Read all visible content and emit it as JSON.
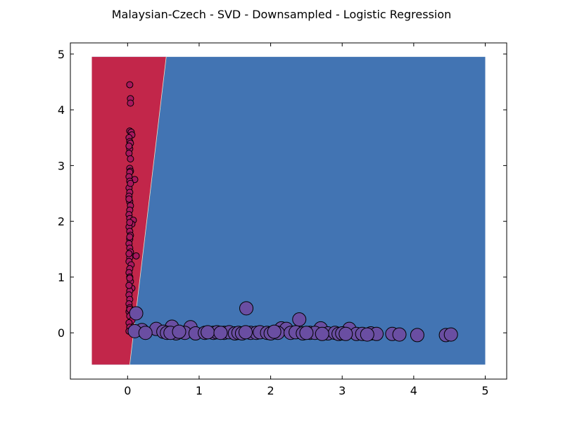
{
  "chart_data": {
    "type": "scatter",
    "title": "Malaysian-Czech - SVD - Downsampled - Logistic Regression",
    "xlabel": "",
    "ylabel": "",
    "xlim": [
      -0.8,
      5.3
    ],
    "ylim": [
      -0.83,
      5.2
    ],
    "xticks": [
      "0",
      "1",
      "2",
      "3",
      "4",
      "5"
    ],
    "yticks": [
      "0",
      "1",
      "2",
      "3",
      "4",
      "5"
    ],
    "decision_regions": {
      "x_range": [
        -0.5,
        5.0
      ],
      "y_range": [
        -0.57,
        4.95
      ],
      "boundary_line": [
        [
          0.03,
          -0.57
        ],
        [
          0.54,
          4.95
        ]
      ],
      "left_color": "#c2264a",
      "right_color": "#4274b3"
    },
    "series": [
      {
        "color": "#a8175e",
        "marker_size": "small",
        "points": [
          [
            0.03,
            4.45
          ],
          [
            0.04,
            4.2
          ],
          [
            0.04,
            4.12
          ],
          [
            0.03,
            3.62
          ],
          [
            0.05,
            3.6
          ],
          [
            0.06,
            3.55
          ],
          [
            0.02,
            3.5
          ],
          [
            0.03,
            3.43
          ],
          [
            0.04,
            3.4
          ],
          [
            0.03,
            3.3
          ],
          [
            0.02,
            3.22
          ],
          [
            0.03,
            2.95
          ],
          [
            0.04,
            2.9
          ],
          [
            0.03,
            2.88
          ],
          [
            0.02,
            2.8
          ],
          [
            0.1,
            2.75
          ],
          [
            0.03,
            2.72
          ],
          [
            0.02,
            2.6
          ],
          [
            0.03,
            2.52
          ],
          [
            0.02,
            2.45
          ],
          [
            0.03,
            2.35
          ],
          [
            0.04,
            2.28
          ],
          [
            0.03,
            2.2
          ],
          [
            0.02,
            2.12
          ],
          [
            0.03,
            2.05
          ],
          [
            0.08,
            2.02
          ],
          [
            0.06,
            1.95
          ],
          [
            0.02,
            1.9
          ],
          [
            0.03,
            1.82
          ],
          [
            0.04,
            1.75
          ],
          [
            0.03,
            1.68
          ],
          [
            0.02,
            1.6
          ],
          [
            0.03,
            1.52
          ],
          [
            0.04,
            1.45
          ],
          [
            0.12,
            1.38
          ],
          [
            0.03,
            1.35
          ],
          [
            0.02,
            1.28
          ],
          [
            0.05,
            1.22
          ],
          [
            0.03,
            1.15
          ],
          [
            0.02,
            1.08
          ],
          [
            0.03,
            1.0
          ],
          [
            0.04,
            0.92
          ],
          [
            0.06,
            0.8
          ],
          [
            0.03,
            0.75
          ],
          [
            0.02,
            0.68
          ],
          [
            0.03,
            0.6
          ],
          [
            0.02,
            0.52
          ],
          [
            0.03,
            0.45
          ],
          [
            0.02,
            0.38
          ],
          [
            0.03,
            0.3
          ],
          [
            0.06,
            0.22
          ],
          [
            0.02,
            0.18
          ],
          [
            0.03,
            0.1
          ],
          [
            0.02,
            0.03
          ],
          [
            0.03,
            0.42
          ],
          [
            0.02,
            0.85
          ],
          [
            0.03,
            1.72
          ],
          [
            0.02,
            2.4
          ],
          [
            0.04,
            2.68
          ],
          [
            0.02,
            3.35
          ],
          [
            0.04,
            3.12
          ],
          [
            0.03,
            1.98
          ],
          [
            0.02,
            1.42
          ],
          [
            0.03,
            0.98
          ]
        ]
      },
      {
        "color": "#6a4ea2",
        "marker_size": "large",
        "points": [
          [
            0.12,
            0.35
          ],
          [
            1.66,
            0.44
          ],
          [
            2.4,
            0.24
          ],
          [
            0.62,
            0.11
          ],
          [
            0.88,
            0.1
          ],
          [
            0.4,
            0.07
          ],
          [
            0.2,
            0.05
          ],
          [
            0.1,
            0.03
          ],
          [
            0.25,
            0.0
          ],
          [
            2.15,
            0.08
          ],
          [
            2.22,
            0.07
          ],
          [
            2.7,
            0.08
          ],
          [
            3.1,
            0.07
          ],
          [
            0.5,
            0.02
          ],
          [
            0.55,
            0.0
          ],
          [
            0.68,
            -0.01
          ],
          [
            0.8,
            0.0
          ],
          [
            0.95,
            -0.01
          ],
          [
            1.08,
            0.0
          ],
          [
            1.2,
            0.0
          ],
          [
            1.25,
            0.01
          ],
          [
            1.35,
            0.0
          ],
          [
            1.42,
            0.01
          ],
          [
            1.5,
            -0.01
          ],
          [
            1.55,
            0.0
          ],
          [
            1.6,
            -0.01
          ],
          [
            1.72,
            0.0
          ],
          [
            1.8,
            0.0
          ],
          [
            1.85,
            0.01
          ],
          [
            1.95,
            0.0
          ],
          [
            2.0,
            -0.01
          ],
          [
            2.1,
            0.0
          ],
          [
            2.28,
            0.0
          ],
          [
            2.35,
            0.01
          ],
          [
            2.45,
            -0.01
          ],
          [
            2.55,
            0.0
          ],
          [
            2.62,
            0.0
          ],
          [
            2.8,
            -0.01
          ],
          [
            2.9,
            0.0
          ],
          [
            2.95,
            -0.02
          ],
          [
            3.0,
            -0.01
          ],
          [
            3.2,
            -0.02
          ],
          [
            3.28,
            -0.02
          ],
          [
            3.4,
            -0.01
          ],
          [
            3.48,
            -0.02
          ],
          [
            3.7,
            -0.02
          ],
          [
            3.8,
            -0.03
          ],
          [
            4.05,
            -0.04
          ],
          [
            4.45,
            -0.04
          ],
          [
            4.52,
            -0.03
          ],
          [
            0.6,
            0.0
          ],
          [
            0.72,
            0.02
          ],
          [
            1.12,
            0.01
          ],
          [
            1.3,
            0.0
          ],
          [
            1.65,
            0.01
          ],
          [
            2.05,
            0.02
          ],
          [
            2.5,
            0.0
          ],
          [
            2.72,
            -0.02
          ],
          [
            3.05,
            -0.02
          ],
          [
            3.35,
            -0.03
          ]
        ]
      }
    ]
  }
}
